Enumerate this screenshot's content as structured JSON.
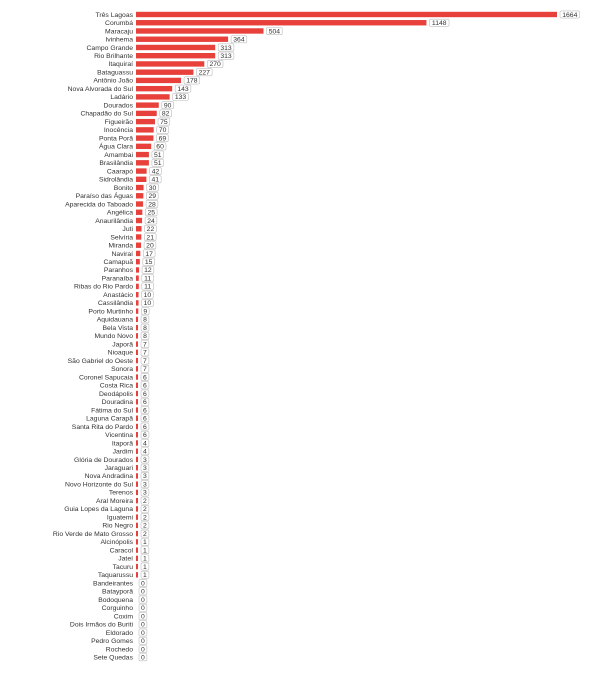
{
  "chart_data": {
    "type": "bar",
    "orientation": "horizontal",
    "bar_color": "#e8413c",
    "label_box_border": "#bdbdbd",
    "categories": [
      "Três Lagoas",
      "Corumbá",
      "Maracaju",
      "Ivinhema",
      "Campo Grande",
      "Rio Brilhante",
      "Itaquiraí",
      "Bataguassu",
      "Antônio João",
      "Nova Alvorada do Sul",
      "Ladário",
      "Dourados",
      "Chapadão do Sul",
      "Figueirão",
      "Inocência",
      "Ponta Porã",
      "Água Clara",
      "Amambai",
      "Brasilândia",
      "Caarapó",
      "Sidrolândia",
      "Bonito",
      "Paraíso das Águas",
      "Aparecida do Taboado",
      "Angélica",
      "Anaurilândia",
      "Juti",
      "Selvíria",
      "Miranda",
      "Naviraí",
      "Camapuã",
      "Paranhos",
      "Paranaíba",
      "Ribas do Rio Pardo",
      "Anastácio",
      "Cassilândia",
      "Porto Murtinho",
      "Aquidauana",
      "Bela Vista",
      "Mundo Novo",
      "Japorã",
      "Nioaque",
      "São Gabriel do Oeste",
      "Sonora",
      "Coronel Sapucaia",
      "Costa Rica",
      "Deodápolis",
      "Douradina",
      "Fátima do Sul",
      "Laguna Carapã",
      "Santa Rita do Pardo",
      "Vicentina",
      "Itaporã",
      "Jardim",
      "Glória de Dourados",
      "Jaraguari",
      "Nova Andradina",
      "Novo Horizonte do Sul",
      "Terenos",
      "Aral Moreira",
      "Guia Lopes da Laguna",
      "Iguatemi",
      "Rio Negro",
      "Rio Verde de Mato Grosso",
      "Alcinópolis",
      "Caracol",
      "Jateí",
      "Tacuru",
      "Taquarussu",
      "Bandeirantes",
      "Batayporã",
      "Bodoquena",
      "Corguinho",
      "Coxim",
      "Dois Irmãos do Buriti",
      "Eldorado",
      "Pedro Gomes",
      "Rochedo",
      "Sete Quedas"
    ],
    "values": [
      1664,
      1148,
      504,
      364,
      313,
      313,
      270,
      227,
      178,
      143,
      133,
      90,
      82,
      75,
      70,
      69,
      60,
      51,
      51,
      42,
      41,
      30,
      29,
      28,
      25,
      24,
      22,
      21,
      20,
      17,
      15,
      12,
      11,
      11,
      10,
      10,
      9,
      8,
      8,
      8,
      7,
      7,
      7,
      7,
      6,
      6,
      6,
      6,
      6,
      6,
      6,
      6,
      4,
      4,
      3,
      3,
      3,
      3,
      3,
      2,
      2,
      2,
      2,
      2,
      1,
      1,
      1,
      1,
      1,
      0,
      0,
      0,
      0,
      0,
      0,
      0,
      0,
      0,
      0
    ],
    "value_labels": [
      "1664",
      "1148",
      "504",
      "364",
      "313",
      "313",
      "270",
      "227",
      "178",
      "143",
      "133",
      "90",
      "82",
      "75",
      "70",
      "69",
      "60",
      "51",
      "51",
      "42",
      "41",
      "30",
      "29",
      "28",
      "25",
      "24",
      "22",
      "21",
      "20",
      "17",
      "15",
      "12",
      "11",
      "11",
      "10",
      "10",
      "9",
      "8",
      "8",
      "8",
      "7",
      "7",
      "7",
      "7",
      "6",
      "6",
      "6",
      "6",
      "6",
      "6",
      "6",
      "6",
      "4",
      "4",
      "3",
      "3",
      "3",
      "3",
      "3",
      "2",
      "2",
      "2",
      "2",
      "2",
      "1",
      "1",
      "1",
      "1",
      "1",
      "0",
      "0",
      "0",
      "0",
      "0",
      "0",
      "0",
      "0",
      "0",
      "0"
    ],
    "xlim": [
      0,
      1664
    ],
    "title": "",
    "xlabel": "",
    "ylabel": "",
    "grid": false,
    "legend": "none"
  }
}
